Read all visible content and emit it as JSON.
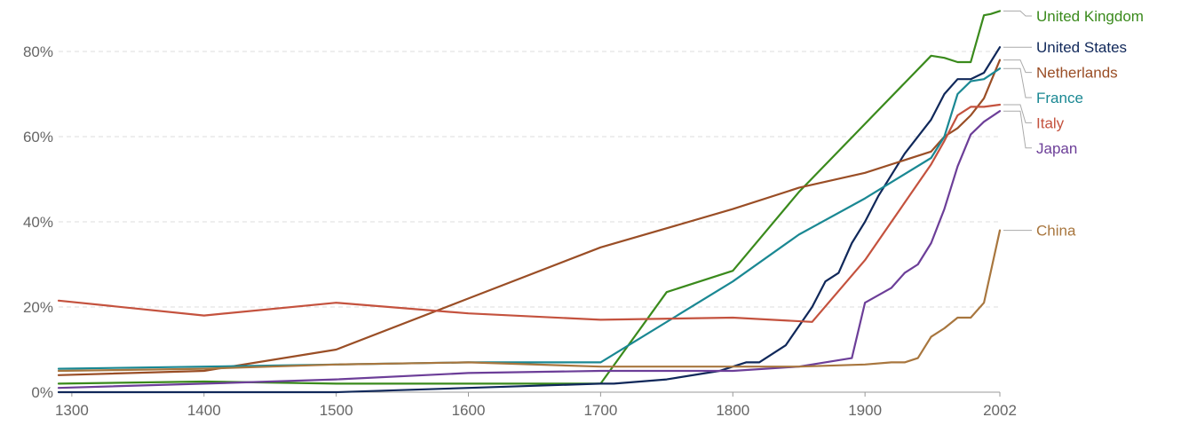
{
  "chart_data": {
    "type": "line",
    "title": "",
    "xlabel": "",
    "ylabel": "",
    "xlim": [
      1290,
      2002
    ],
    "ylim": [
      0,
      90
    ],
    "x_ticks": [
      {
        "value": 1300,
        "label": "1300"
      },
      {
        "value": 1400,
        "label": "1400"
      },
      {
        "value": 1500,
        "label": "1500"
      },
      {
        "value": 1600,
        "label": "1600"
      },
      {
        "value": 1700,
        "label": "1700"
      },
      {
        "value": 1800,
        "label": "1800"
      },
      {
        "value": 1900,
        "label": "1900"
      },
      {
        "value": 2002,
        "label": "2002"
      }
    ],
    "y_ticks": [
      {
        "value": 0,
        "label": "0%"
      },
      {
        "value": 20,
        "label": "20%"
      },
      {
        "value": 40,
        "label": "40%"
      },
      {
        "value": 60,
        "label": "60%"
      },
      {
        "value": 80,
        "label": "80%"
      }
    ],
    "grid": true,
    "legend": "right (line-end labels)",
    "series": [
      {
        "name": "United Kingdom",
        "color": "#3a8a1c",
        "points": [
          [
            1290,
            2
          ],
          [
            1400,
            2.5
          ],
          [
            1500,
            2
          ],
          [
            1600,
            2
          ],
          [
            1700,
            2
          ],
          [
            1750,
            23.5
          ],
          [
            1800,
            28.5
          ],
          [
            1850,
            47
          ],
          [
            1900,
            63
          ],
          [
            1950,
            79
          ],
          [
            1960,
            78.5
          ],
          [
            1970,
            77.5
          ],
          [
            1980,
            77.5
          ],
          [
            1990,
            88.5
          ],
          [
            1995,
            88.8
          ],
          [
            2002,
            89.5
          ]
        ]
      },
      {
        "name": "United States",
        "color": "#10285a",
        "points": [
          [
            1290,
            0
          ],
          [
            1400,
            0
          ],
          [
            1500,
            0
          ],
          [
            1600,
            1
          ],
          [
            1700,
            2
          ],
          [
            1710,
            2
          ],
          [
            1750,
            3
          ],
          [
            1790,
            5
          ],
          [
            1800,
            6
          ],
          [
            1810,
            7
          ],
          [
            1820,
            7
          ],
          [
            1830,
            9
          ],
          [
            1840,
            11
          ],
          [
            1860,
            20
          ],
          [
            1870,
            26
          ],
          [
            1880,
            28
          ],
          [
            1890,
            35
          ],
          [
            1900,
            40
          ],
          [
            1910,
            46
          ],
          [
            1920,
            51
          ],
          [
            1930,
            56
          ],
          [
            1950,
            64
          ],
          [
            1960,
            70
          ],
          [
            1970,
            73.5
          ],
          [
            1980,
            73.5
          ],
          [
            1990,
            75
          ],
          [
            2002,
            81
          ]
        ]
      },
      {
        "name": "Netherlands",
        "color": "#9a4e26",
        "points": [
          [
            1290,
            4
          ],
          [
            1400,
            5
          ],
          [
            1500,
            10
          ],
          [
            1600,
            22
          ],
          [
            1700,
            34
          ],
          [
            1800,
            43
          ],
          [
            1850,
            48
          ],
          [
            1900,
            51.5
          ],
          [
            1950,
            56.5
          ],
          [
            1960,
            60
          ],
          [
            1970,
            62
          ],
          [
            1980,
            65
          ],
          [
            1990,
            69
          ],
          [
            2002,
            78
          ]
        ]
      },
      {
        "name": "France",
        "color": "#1a8893",
        "points": [
          [
            1290,
            5.5
          ],
          [
            1400,
            6
          ],
          [
            1500,
            6.5
          ],
          [
            1600,
            7
          ],
          [
            1700,
            7
          ],
          [
            1800,
            26
          ],
          [
            1850,
            37
          ],
          [
            1900,
            45.5
          ],
          [
            1950,
            55
          ],
          [
            1960,
            60
          ],
          [
            1970,
            70
          ],
          [
            1980,
            73
          ],
          [
            1990,
            73.5
          ],
          [
            2002,
            76
          ]
        ]
      },
      {
        "name": "Italy",
        "color": "#c4523e",
        "points": [
          [
            1290,
            21.5
          ],
          [
            1400,
            18
          ],
          [
            1500,
            21
          ],
          [
            1600,
            18.5
          ],
          [
            1700,
            17
          ],
          [
            1800,
            17.5
          ],
          [
            1860,
            16.5
          ],
          [
            1900,
            31
          ],
          [
            1950,
            53.5
          ],
          [
            1960,
            59
          ],
          [
            1970,
            65
          ],
          [
            1980,
            67
          ],
          [
            1990,
            67
          ],
          [
            2002,
            67.5
          ]
        ]
      },
      {
        "name": "Japan",
        "color": "#6c3e98",
        "points": [
          [
            1290,
            1
          ],
          [
            1400,
            2
          ],
          [
            1500,
            3
          ],
          [
            1600,
            4.5
          ],
          [
            1700,
            5
          ],
          [
            1800,
            5
          ],
          [
            1850,
            6
          ],
          [
            1890,
            8
          ],
          [
            1900,
            21
          ],
          [
            1920,
            24.5
          ],
          [
            1930,
            28
          ],
          [
            1940,
            30
          ],
          [
            1950,
            35
          ],
          [
            1960,
            43
          ],
          [
            1970,
            53
          ],
          [
            1980,
            60.5
          ],
          [
            1990,
            63.5
          ],
          [
            2002,
            66
          ]
        ]
      },
      {
        "name": "China",
        "color": "#a8763e",
        "points": [
          [
            1290,
            5
          ],
          [
            1400,
            5.5
          ],
          [
            1500,
            6.5
          ],
          [
            1600,
            7
          ],
          [
            1700,
            6
          ],
          [
            1800,
            6
          ],
          [
            1850,
            6
          ],
          [
            1900,
            6.5
          ],
          [
            1920,
            7
          ],
          [
            1930,
            7
          ],
          [
            1940,
            8
          ],
          [
            1950,
            13
          ],
          [
            1960,
            15
          ],
          [
            1970,
            17.5
          ],
          [
            1980,
            17.5
          ],
          [
            1990,
            21
          ],
          [
            2002,
            38
          ]
        ]
      }
    ]
  }
}
